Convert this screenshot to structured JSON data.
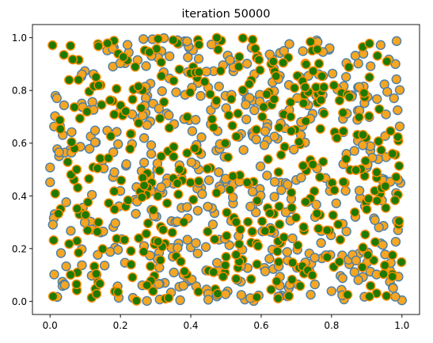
{
  "chart_data": {
    "type": "scatter",
    "title": "iteration 50000",
    "xlabel": "",
    "ylabel": "",
    "xlim": [
      -0.05,
      1.05
    ],
    "ylim": [
      -0.05,
      1.05
    ],
    "xticks": [
      0.0,
      0.2,
      0.4,
      0.6,
      0.8,
      1.0
    ],
    "yticks": [
      0.0,
      0.2,
      0.4,
      0.6,
      0.8,
      1.0
    ],
    "xtick_labels": [
      "0.0",
      "0.2",
      "0.4",
      "0.6",
      "0.8",
      "1.0"
    ],
    "ytick_labels": [
      "0.0",
      "0.2",
      "0.4",
      "0.6",
      "0.8",
      "1.0"
    ],
    "grid": false,
    "series": [
      {
        "style": "orange fill, steel-blue edge",
        "face_color": "#f5a623",
        "edge_color": "#4a7fa8",
        "count": 520,
        "seed": 12345,
        "distribution": "uniform on [0,1] x [0,1]"
      },
      {
        "style": "green fill, orange edge",
        "face_color": "#1f7a00",
        "edge_color": "#ff8c00",
        "count": 420,
        "seed": 67890,
        "distribution": "uniform on [0,1] x [0,1]"
      }
    ]
  }
}
